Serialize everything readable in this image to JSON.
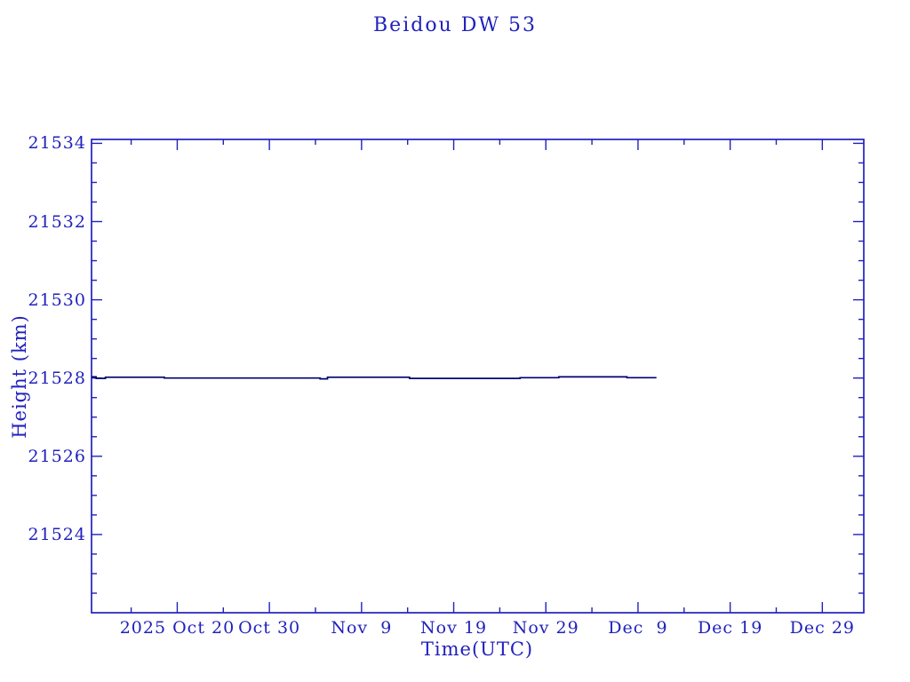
{
  "page": {
    "background": "#ffffff",
    "text_color": "#2121bd"
  },
  "chart_data": {
    "type": "line",
    "title": "Beidou DW 53",
    "xlabel": "Time(UTC)",
    "ylabel": "Height (km)",
    "axis_color": "#2121bd",
    "line_color": "#000070",
    "grid": false,
    "legend": null,
    "xlim_days_from_oct20": [
      -9.3,
      74.5
    ],
    "x_major_ticks": [
      {
        "day": 0,
        "label": "2025 Oct 20"
      },
      {
        "day": 10,
        "label": "Oct 30"
      },
      {
        "day": 20,
        "label": "Nov  9"
      },
      {
        "day": 30,
        "label": "Nov 19"
      },
      {
        "day": 40,
        "label": "Nov 29"
      },
      {
        "day": 50,
        "label": "Dec  9"
      },
      {
        "day": 60,
        "label": "Dec 19"
      },
      {
        "day": 70,
        "label": "Dec 29"
      }
    ],
    "x_minor_step_days": 5,
    "ylim": [
      21522.0,
      21534.1
    ],
    "y_major_ticks": [
      21524,
      21526,
      21528,
      21530,
      21532,
      21534
    ],
    "y_minor_step": 0.5,
    "series": [
      {
        "name": "height-km",
        "points_day_km": [
          [
            -9.3,
            21528.03
          ],
          [
            -8.8,
            21528.03
          ],
          [
            -8.8,
            21527.99
          ],
          [
            -7.8,
            21527.99
          ],
          [
            -7.8,
            21528.02
          ],
          [
            -1.4,
            21528.02
          ],
          [
            -1.4,
            21528.0
          ],
          [
            15.5,
            21528.0
          ],
          [
            15.5,
            21527.98
          ],
          [
            16.3,
            21527.98
          ],
          [
            16.3,
            21528.02
          ],
          [
            25.2,
            21528.02
          ],
          [
            25.2,
            21527.99
          ],
          [
            37.2,
            21527.99
          ],
          [
            37.2,
            21528.01
          ],
          [
            41.4,
            21528.01
          ],
          [
            41.4,
            21528.03
          ],
          [
            48.8,
            21528.03
          ],
          [
            48.8,
            21528.01
          ],
          [
            52.0,
            21528.01
          ]
        ]
      }
    ]
  }
}
